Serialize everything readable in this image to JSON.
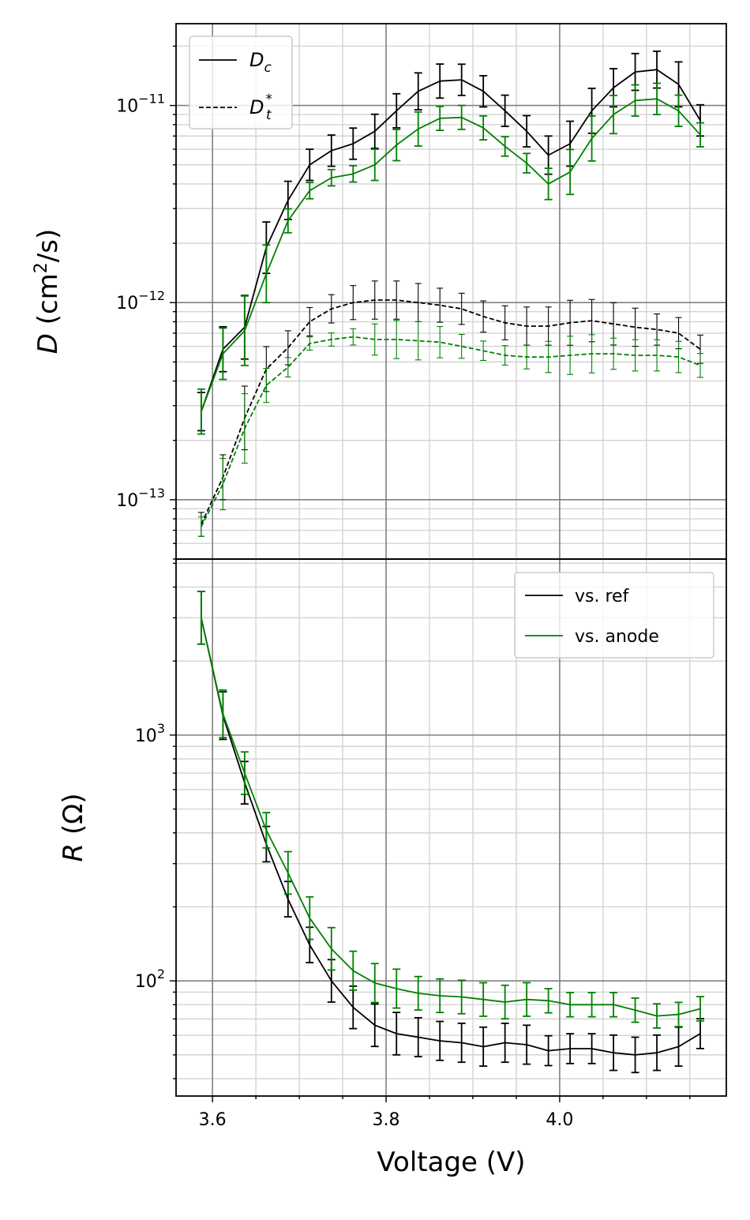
{
  "chart_data": [
    {
      "type": "line",
      "panel": "top",
      "ylabel": {
        "italic": "D",
        "rest": " (cm",
        "sup": "2",
        "tail": "/s)"
      },
      "yscale": "log",
      "ylim": [
        5e-14,
        2.6e-11
      ],
      "yticks": [
        {
          "value": 1e-13,
          "base": "10",
          "exp": "−13"
        },
        {
          "value": 1e-12,
          "base": "10",
          "exp": "−12"
        },
        {
          "value": 1e-11,
          "base": "10",
          "exp": "−11"
        }
      ],
      "xlim": [
        3.558,
        4.192
      ],
      "grid": true,
      "legend": {
        "location": "upper left",
        "entries": [
          {
            "style": "solid",
            "main": "D",
            "sub": "c",
            "sup": ""
          },
          {
            "style": "dashed",
            "main": "D",
            "sub": "t",
            "sup": "*"
          }
        ]
      },
      "x": [
        3.587,
        3.612,
        3.637,
        3.662,
        3.687,
        3.712,
        3.737,
        3.762,
        3.787,
        3.812,
        3.837,
        3.862,
        3.887,
        3.912,
        3.937,
        3.962,
        3.987,
        4.012,
        4.037,
        4.062,
        4.087,
        4.112,
        4.137,
        4.162
      ],
      "series": [
        {
          "color": "#000000",
          "dash": "solid",
          "values": [
            2.8e-13,
            5.8e-13,
            7.5e-13,
            1.9e-12,
            3.3e-12,
            5e-12,
            5.9e-12,
            6.4e-12,
            7.4e-12,
            9.4e-12,
            1.18e-11,
            1.33e-11,
            1.35e-11,
            1.18e-11,
            9.4e-12,
            7.4e-12,
            5.6e-12,
            6.4e-12,
            9.4e-12,
            1.23e-11,
            1.48e-11,
            1.52e-11,
            1.28e-11,
            8.4e-12
          ],
          "err": [
            0.25,
            0.3,
            0.45,
            0.35,
            0.25,
            0.2,
            0.2,
            0.2,
            0.22,
            0.22,
            0.24,
            0.22,
            0.2,
            0.2,
            0.2,
            0.2,
            0.25,
            0.3,
            0.3,
            0.25,
            0.24,
            0.24,
            0.3,
            0.2
          ]
        },
        {
          "color": "#008000",
          "dash": "solid",
          "values": [
            2.8e-13,
            5.5e-13,
            7.2e-13,
            1.4e-12,
            2.6e-12,
            3.7e-12,
            4.3e-12,
            4.5e-12,
            5e-12,
            6.3e-12,
            7.6e-12,
            8.6e-12,
            8.7e-12,
            7.7e-12,
            6.2e-12,
            5.1e-12,
            4e-12,
            4.6e-12,
            6.8e-12,
            9e-12,
            1.06e-11,
            1.08e-11,
            9.4e-12,
            7.1e-12
          ],
          "err": [
            0.3,
            0.35,
            0.5,
            0.4,
            0.15,
            0.1,
            0.1,
            0.1,
            0.2,
            0.2,
            0.22,
            0.15,
            0.15,
            0.15,
            0.12,
            0.12,
            0.2,
            0.3,
            0.3,
            0.25,
            0.2,
            0.2,
            0.2,
            0.15
          ]
        },
        {
          "color": "#000000",
          "dash": "dashed",
          "values": [
            7.5e-14,
            1.3e-13,
            2.6e-13,
            4.6e-13,
            5.9e-13,
            8e-13,
            9.3e-13,
            1e-12,
            1.03e-12,
            1.03e-12,
            1e-12,
            9.7e-13,
            9.3e-13,
            8.5e-13,
            7.9e-13,
            7.6e-13,
            7.6e-13,
            7.9e-13,
            8.1e-13,
            7.8e-13,
            7.5e-13,
            7.3e-13,
            7e-13,
            5.8e-13
          ],
          "err": [
            0.15,
            0.3,
            0.45,
            0.3,
            0.22,
            0.18,
            0.18,
            0.22,
            0.25,
            0.25,
            0.25,
            0.22,
            0.2,
            0.2,
            0.22,
            0.25,
            0.25,
            0.3,
            0.28,
            0.28,
            0.25,
            0.2,
            0.2,
            0.18
          ]
        },
        {
          "color": "#008000",
          "dash": "dashed",
          "values": [
            7.3e-14,
            1.2e-13,
            2.3e-13,
            3.8e-13,
            4.7e-13,
            6.2e-13,
            6.5e-13,
            6.7e-13,
            6.5e-13,
            6.5e-13,
            6.4e-13,
            6.3e-13,
            6e-13,
            5.7e-13,
            5.4e-13,
            5.3e-13,
            5.3e-13,
            5.4e-13,
            5.5e-13,
            5.5e-13,
            5.4e-13,
            5.4e-13,
            5.3e-13,
            4.8e-13
          ],
          "err": [
            0.12,
            0.35,
            0.5,
            0.22,
            0.12,
            0.08,
            0.08,
            0.1,
            0.2,
            0.25,
            0.25,
            0.2,
            0.15,
            0.12,
            0.12,
            0.15,
            0.2,
            0.25,
            0.25,
            0.2,
            0.2,
            0.2,
            0.2,
            0.15
          ]
        }
      ]
    },
    {
      "type": "line",
      "panel": "bottom",
      "ylabel": {
        "italic": "R",
        "rest": " (Ω)"
      },
      "xlabel": "Voltage (V)",
      "yscale": "log",
      "ylim": [
        34,
        5200
      ],
      "yticks": [
        {
          "value": 100,
          "base": "10",
          "exp": "2"
        },
        {
          "value": 1000,
          "base": "10",
          "exp": "3"
        }
      ],
      "xlim": [
        3.558,
        4.192
      ],
      "xticks": [
        {
          "value": 3.6,
          "label": "3.6"
        },
        {
          "value": 3.8,
          "label": "3.8"
        },
        {
          "value": 4.0,
          "label": "4.0"
        }
      ],
      "grid": true,
      "legend": {
        "location": "upper right",
        "entries": [
          {
            "color": "#000000",
            "label": "vs. ref"
          },
          {
            "color": "#008000",
            "label": "vs. anode"
          }
        ]
      },
      "x": [
        3.587,
        3.612,
        3.637,
        3.662,
        3.687,
        3.712,
        3.737,
        3.762,
        3.787,
        3.812,
        3.837,
        3.862,
        3.887,
        3.912,
        3.937,
        3.962,
        3.987,
        4.012,
        4.037,
        4.062,
        4.087,
        4.112,
        4.137,
        4.162
      ],
      "series": [
        {
          "name": "vs. ref",
          "color": "#000000",
          "dash": "solid",
          "values": [
            3000,
            1200,
            640,
            360,
            215,
            140,
            100,
            78,
            66,
            61,
            59,
            57,
            56,
            54,
            56,
            55,
            52,
            53,
            53,
            51,
            50,
            51,
            54,
            61
          ],
          "err": [
            0.28,
            0.25,
            0.22,
            0.18,
            0.18,
            0.18,
            0.22,
            0.22,
            0.22,
            0.22,
            0.2,
            0.2,
            0.2,
            0.2,
            0.2,
            0.2,
            0.15,
            0.15,
            0.15,
            0.18,
            0.18,
            0.18,
            0.2,
            0.15
          ]
        },
        {
          "name": "vs. anode",
          "color": "#008000",
          "dash": "solid",
          "values": [
            3000,
            1220,
            700,
            410,
            275,
            180,
            135,
            110,
            98,
            93,
            89,
            87,
            86,
            84,
            82,
            84,
            83,
            80,
            80,
            80,
            76,
            72,
            73,
            77
          ],
          "err": [
            0.28,
            0.25,
            0.22,
            0.18,
            0.22,
            0.22,
            0.22,
            0.2,
            0.2,
            0.2,
            0.17,
            0.17,
            0.17,
            0.17,
            0.17,
            0.17,
            0.12,
            0.12,
            0.12,
            0.12,
            0.12,
            0.12,
            0.12,
            0.12
          ]
        }
      ]
    }
  ]
}
